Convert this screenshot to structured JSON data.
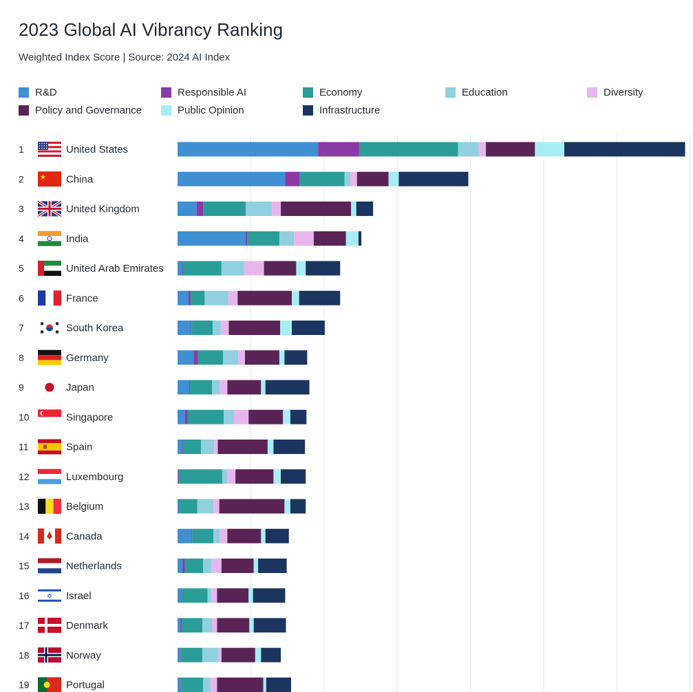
{
  "header": {
    "title": "2023 Global AI Vibrancy Ranking",
    "subtitle": "Weighted Index Score | Source: 2024 AI Index"
  },
  "chart_data": {
    "type": "bar",
    "orientation": "horizontal",
    "stacked": true,
    "title": "2023 Global AI Vibrancy Ranking",
    "subtitle": "Weighted Index Score | Source: 2024 AI Index",
    "xlabel": "",
    "ylabel": "",
    "xlim": [
      0,
      70
    ],
    "grid": true,
    "legend_placement": "top",
    "categories": [
      "United States",
      "China",
      "United Kingdom",
      "India",
      "United Arab Emirates",
      "France",
      "South Korea",
      "Germany",
      "Japan",
      "Singapore",
      "Spain",
      "Luxembourg",
      "Belgium",
      "Canada",
      "Netherlands",
      "Israel",
      "Denmark",
      "Norway",
      "Portugal"
    ],
    "ranks": [
      "1",
      "2",
      "3",
      "4",
      "5",
      "6",
      "7",
      "8",
      "9",
      "10",
      "11",
      "12",
      "13",
      "14",
      "15",
      "16",
      "17",
      "18",
      "19"
    ],
    "flags": [
      "us-flag-icon",
      "cn-flag-icon",
      "uk-flag-icon",
      "in-flag-icon",
      "ae-flag-icon",
      "fr-flag-icon",
      "kr-flag-icon",
      "de-flag-icon",
      "jp-flag-icon",
      "sg-flag-icon",
      "es-flag-icon",
      "lu-flag-icon",
      "be-flag-icon",
      "ca-flag-icon",
      "nl-flag-icon",
      "il-flag-icon",
      "dk-flag-icon",
      "no-flag-icon",
      "pt-flag-icon"
    ],
    "series": [
      {
        "name": "R&D",
        "color": "#3f8fd2",
        "values": [
          19.2,
          14.7,
          2.6,
          9.3,
          0.6,
          1.5,
          1.8,
          2.2,
          1.6,
          1.0,
          0.6,
          0.1,
          0.2,
          1.9,
          0.7,
          0.5,
          0.4,
          0.3,
          0.3
        ]
      },
      {
        "name": "Responsible AI",
        "color": "#8a3aa6",
        "values": [
          5.6,
          2.0,
          0.9,
          0.2,
          0.1,
          0.3,
          0.1,
          0.6,
          0.1,
          0.4,
          0.1,
          0.1,
          0.1,
          0.1,
          0.3,
          0.1,
          0.2,
          0.1,
          0.1
        ]
      },
      {
        "name": "Economy",
        "color": "#2a9d98",
        "values": [
          13.5,
          6.1,
          5.8,
          4.4,
          5.3,
          1.9,
          2.9,
          3.4,
          3.0,
          4.9,
          2.5,
          5.9,
          2.4,
          2.9,
          2.5,
          3.5,
          2.8,
          3.0,
          3.1
        ]
      },
      {
        "name": "Education",
        "color": "#90d0e0",
        "values": [
          2.8,
          0.8,
          3.6,
          2.0,
          3.1,
          3.2,
          1.1,
          2.1,
          1.1,
          1.4,
          1.8,
          0.7,
          2.2,
          0.9,
          1.1,
          0.5,
          1.3,
          2.2,
          1.0
        ]
      },
      {
        "name": "Diversity",
        "color": "#e8b6ef",
        "values": [
          1.0,
          0.9,
          1.2,
          2.7,
          2.7,
          1.3,
          1.1,
          0.9,
          1.0,
          2.0,
          0.5,
          1.1,
          0.8,
          1.0,
          1.4,
          0.8,
          0.7,
          0.4,
          0.9
        ]
      },
      {
        "name": "Policy and Governance",
        "color": "#5a2356",
        "values": [
          6.7,
          4.3,
          9.6,
          4.4,
          4.4,
          7.4,
          7.0,
          4.7,
          4.6,
          4.7,
          6.8,
          5.2,
          8.9,
          4.6,
          4.4,
          4.3,
          4.4,
          4.6,
          6.3
        ]
      },
      {
        "name": "Public Opinion",
        "color": "#a6eef4",
        "values": [
          4.0,
          1.4,
          0.7,
          1.7,
          1.3,
          1.0,
          1.6,
          0.7,
          0.6,
          1.0,
          0.8,
          1.0,
          0.8,
          0.6,
          0.6,
          0.6,
          0.6,
          0.8,
          0.4
        ]
      },
      {
        "name": "Infrastructure",
        "color": "#1b3560",
        "values": [
          16.5,
          9.5,
          2.3,
          0.4,
          4.7,
          5.6,
          4.5,
          3.1,
          6.0,
          2.2,
          4.3,
          3.4,
          2.1,
          3.2,
          3.9,
          4.4,
          4.4,
          2.7,
          3.4
        ]
      }
    ]
  }
}
